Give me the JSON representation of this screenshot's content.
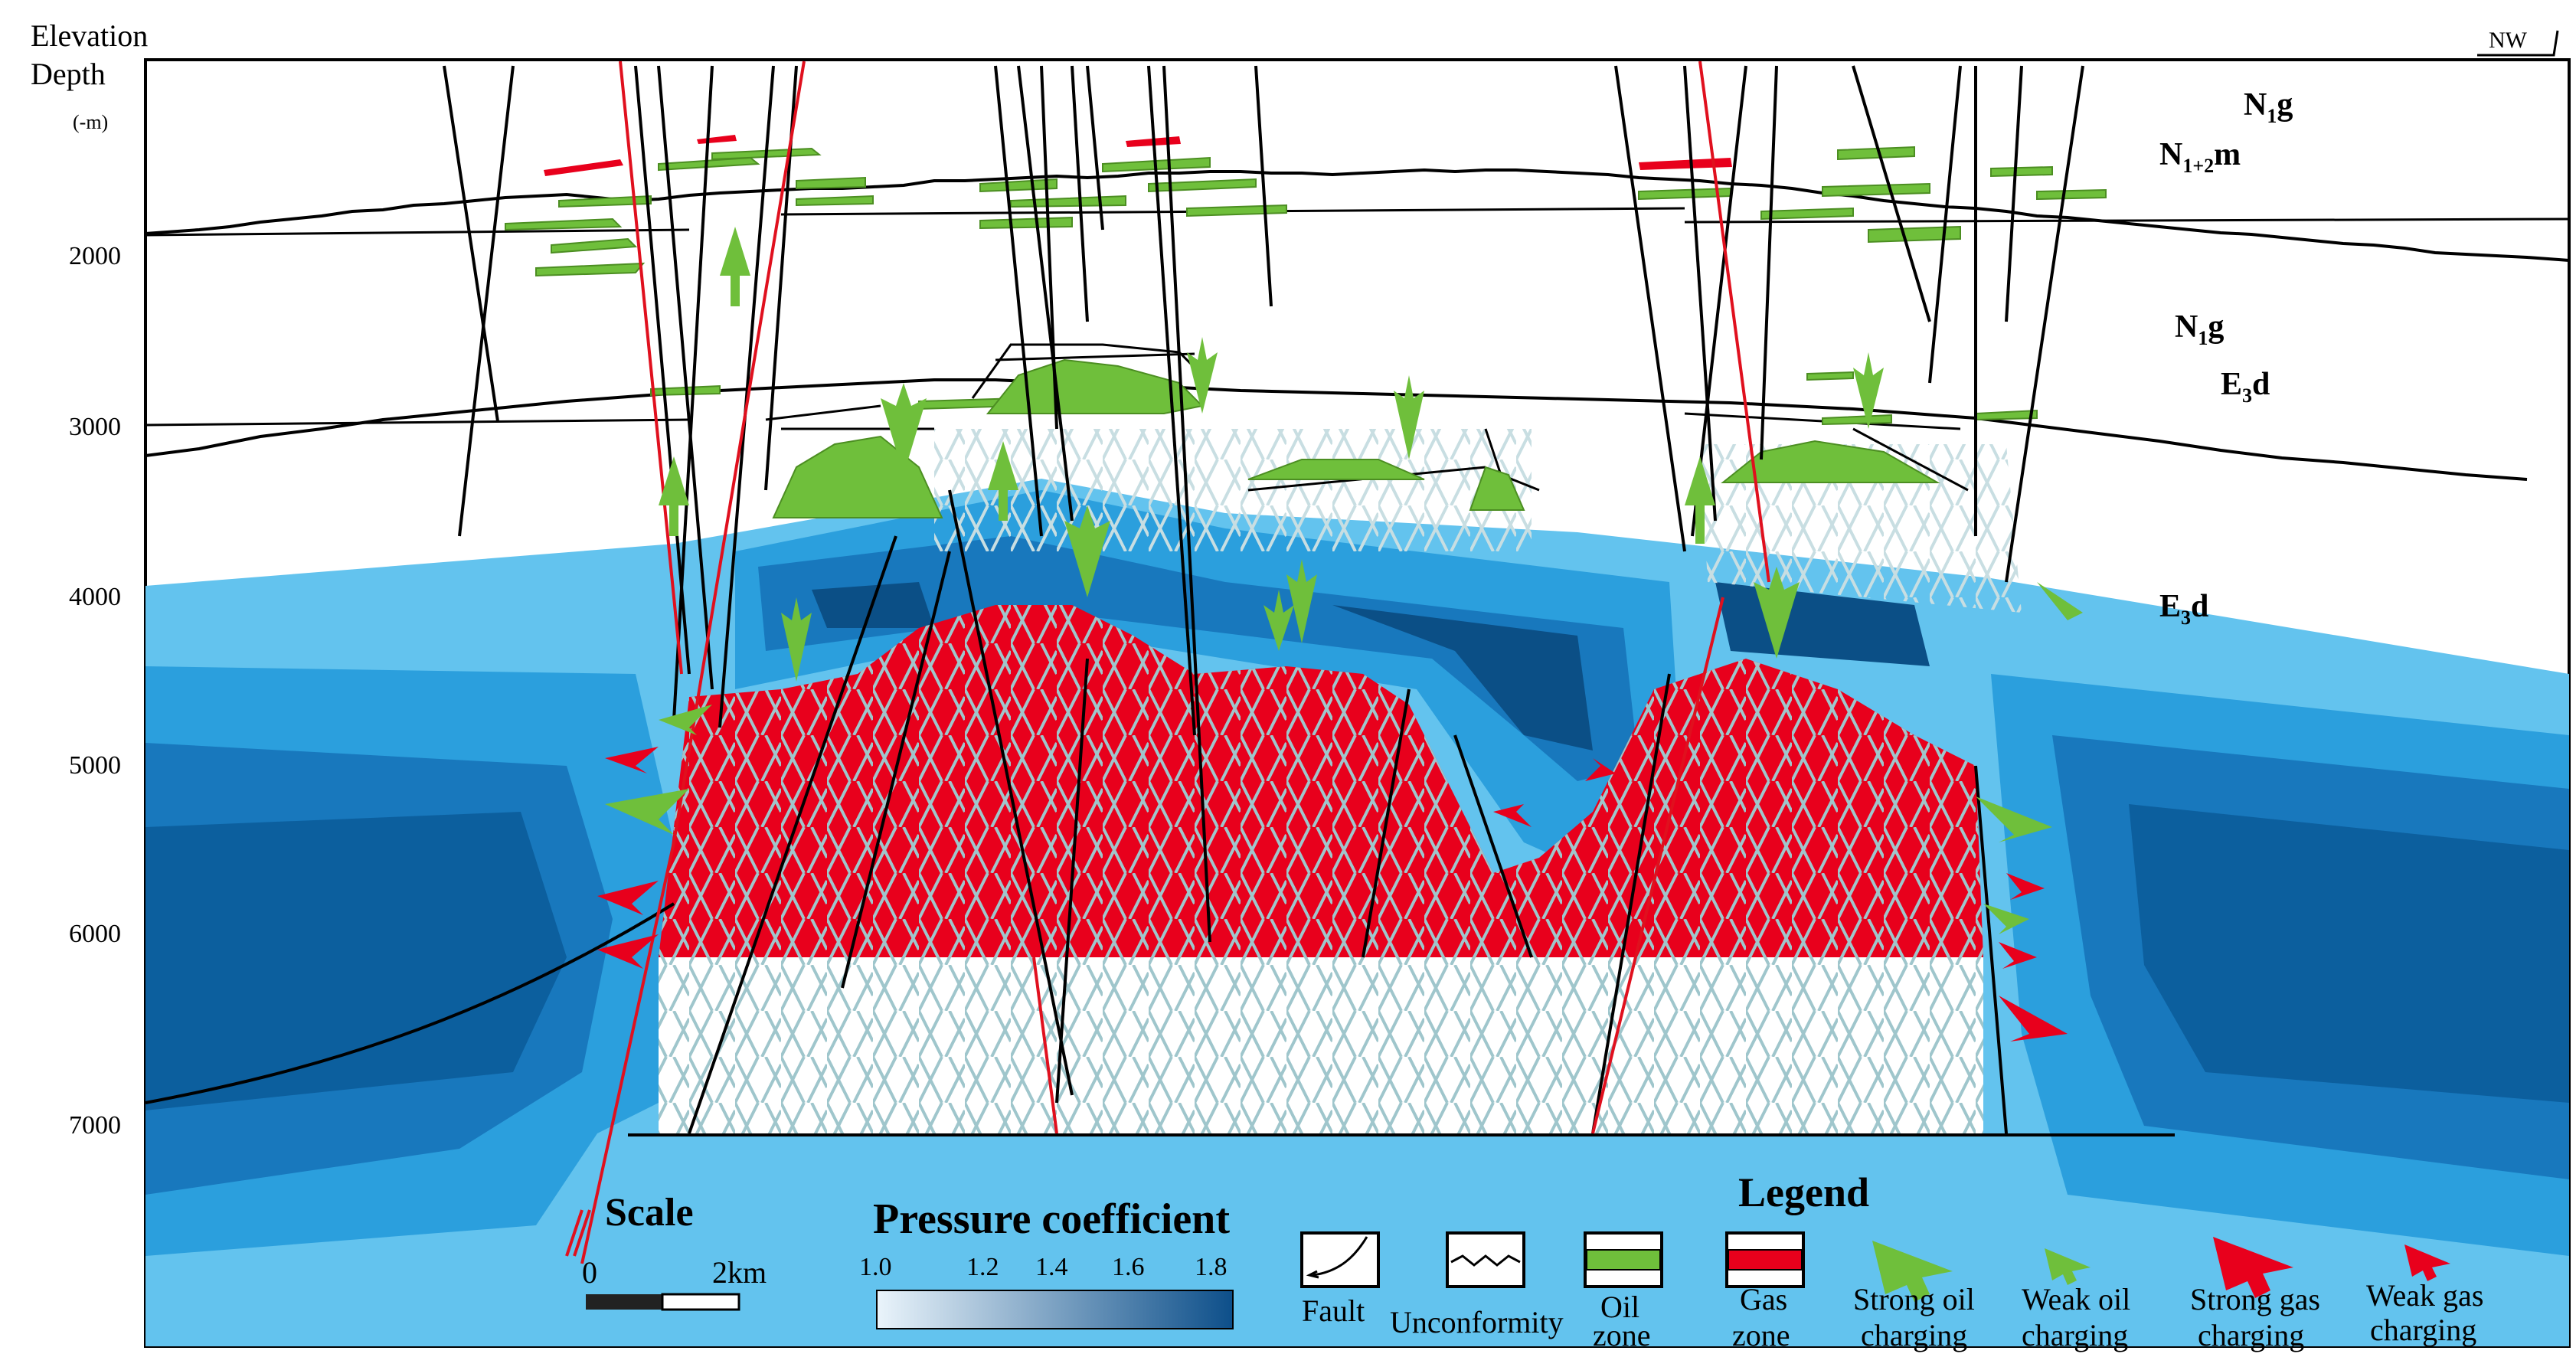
{
  "axis": {
    "title_line1": "Elevation",
    "title_line2": "Depth",
    "unit": "(-m)",
    "ticks": [
      "2000",
      "3000",
      "4000",
      "5000",
      "6000",
      "7000"
    ]
  },
  "direction": "NW",
  "strata": [
    {
      "id": "n1g-top",
      "main": "N",
      "sub": "1",
      "rest": "g"
    },
    {
      "id": "n12m",
      "main": "N",
      "sub": "1+2",
      "rest": "m"
    },
    {
      "id": "n1g-mid",
      "main": "N",
      "sub": "1",
      "rest": "g"
    },
    {
      "id": "e3d-upper",
      "main": "E",
      "sub": "3",
      "rest": "d"
    },
    {
      "id": "e3d-lower",
      "main": "E",
      "sub": "3",
      "rest": "d"
    }
  ],
  "scale": {
    "label": "Scale",
    "start": "0",
    "end": "2km"
  },
  "pressure": {
    "title": "Pressure coefficient",
    "ticks": [
      "1.0",
      "1.2",
      "1.4",
      "1.6",
      "1.8"
    ],
    "color_low": "#eaf4fb",
    "color_high": "#0d4f8a"
  },
  "legend": {
    "title": "Legend",
    "fault": "Fault",
    "unconformity": "Unconformity",
    "oil_line1": "Oil",
    "oil_line2": "zone",
    "gas_line1": "Gas",
    "gas_line2": "zone",
    "strong_oil_1": "Strong oil",
    "strong_oil_2": "charging",
    "weak_oil_1": "Weak oil",
    "weak_oil_2": "charging",
    "strong_gas_1": "Strong gas",
    "strong_gas_2": "charging",
    "weak_gas_1": "Weak gas",
    "weak_gas_2": "charging"
  },
  "colors": {
    "oil": "#6fbf3b",
    "gas": "#e8001c",
    "fault_red": "#e0101e",
    "fracture": "#9fc6cc",
    "p_light": "#63c3ee",
    "p_mid": "#2b9fdd",
    "p_dark": "#1878bd",
    "p_darker": "#0c5f9e",
    "p_darkest": "#0b4f86"
  },
  "icons": [
    "fault-icon",
    "unconformity-icon",
    "oil-zone-icon",
    "gas-zone-icon",
    "strong-oil-arrow-icon",
    "weak-oil-arrow-icon",
    "strong-gas-arrow-icon",
    "weak-gas-arrow-icon"
  ]
}
